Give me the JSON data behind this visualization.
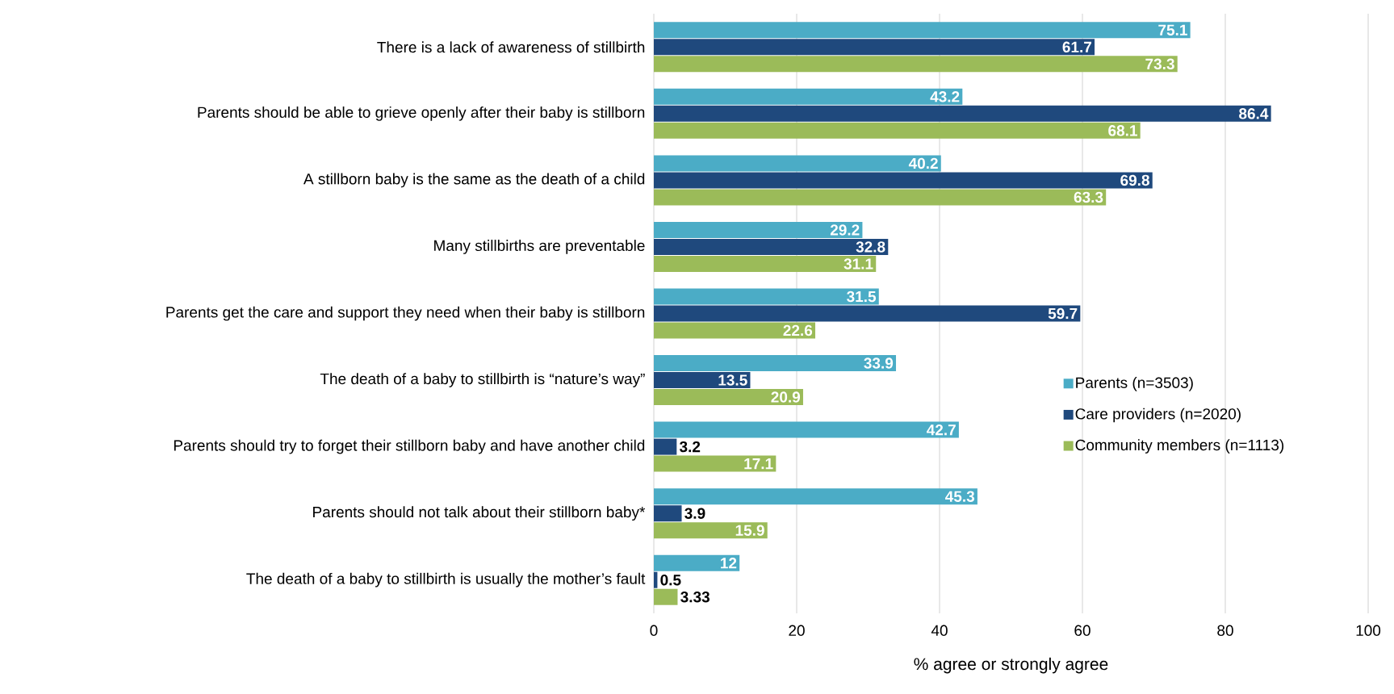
{
  "chart_data": {
    "type": "bar",
    "orientation": "horizontal",
    "xlabel": "% agree or strongly agree",
    "categories": [
      "There is a lack of awareness of stillbirth",
      "Parents should be able to grieve openly after their baby is stillborn",
      "A stillborn baby is the same as the death of a child",
      "Many stillbirths are preventable",
      "Parents get the care and support they need when their baby is stillborn",
      "The death of a baby to stillbirth is “nature’s way”",
      "Parents should try to forget their stillborn baby and have another child",
      "Parents should not talk about their stillborn baby*",
      "The death of a baby to stillbirth is usually the mother’s fault"
    ],
    "series": [
      {
        "name": "Parents (n=3503)",
        "color": "#4bacc6",
        "values": [
          75.1,
          43.2,
          40.2,
          29.2,
          31.5,
          33.9,
          42.7,
          45.3,
          12
        ]
      },
      {
        "name": "Care providers (n=2020)",
        "color": "#1f497d",
        "values": [
          61.7,
          86.4,
          69.8,
          32.8,
          59.7,
          13.5,
          3.2,
          3.9,
          0.5
        ]
      },
      {
        "name": "Community members (n=1113)",
        "color": "#9bbb59",
        "values": [
          73.3,
          68.1,
          63.3,
          31.1,
          22.6,
          20.9,
          17.1,
          15.9,
          3.33
        ]
      }
    ],
    "xlim": [
      0,
      100
    ],
    "xticks": [
      0,
      20,
      40,
      60,
      80,
      100
    ],
    "grid": "x",
    "legend": "right",
    "data_labels": true
  }
}
